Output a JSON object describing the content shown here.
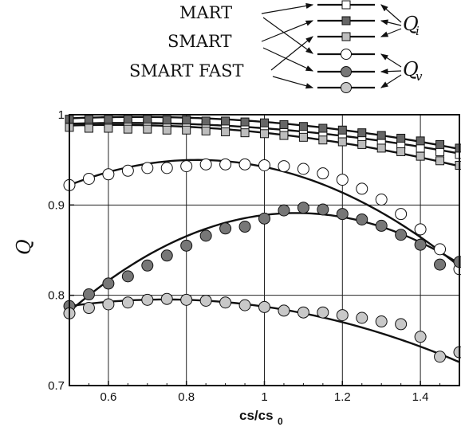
{
  "chart_data": {
    "type": "line",
    "xlabel": "cs/cs",
    "xlabel_sub": "0",
    "ylabel": "Q",
    "xlim": [
      0.5,
      1.5
    ],
    "ylim": [
      0.7,
      1.0
    ],
    "xticks": [
      0.6,
      0.8,
      1,
      1.2,
      1.4
    ],
    "yticks": [
      0.7,
      0.8,
      0.9,
      1
    ],
    "grid": true,
    "legend": {
      "methods": [
        "MART",
        "SMART",
        "SMART FAST"
      ],
      "groups": [
        {
          "symbol": "Q",
          "sub": "i"
        },
        {
          "symbol": "Q",
          "sub": "v"
        }
      ]
    },
    "series": [
      {
        "group": "Qi",
        "method": "MART",
        "marker": "square",
        "fill": "#ffffff",
        "x": [
          0.5,
          0.55,
          0.6,
          0.65,
          0.7,
          0.75,
          0.8,
          0.85,
          0.9,
          0.95,
          1.0,
          1.05,
          1.1,
          1.15,
          1.2,
          1.25,
          1.3,
          1.35,
          1.4,
          1.45,
          1.5
        ],
        "y": [
          0.99,
          0.99,
          0.99,
          0.99,
          0.99,
          0.99,
          0.989,
          0.988,
          0.988,
          0.986,
          0.985,
          0.983,
          0.98,
          0.978,
          0.976,
          0.973,
          0.97,
          0.967,
          0.963,
          0.959,
          0.956
        ],
        "curve": {
          "x": [
            0.5,
            1.0,
            1.5
          ],
          "y": [
            0.99,
            0.985,
            0.957
          ]
        }
      },
      {
        "group": "Qi",
        "method": "SMART",
        "marker": "square",
        "fill": "#666666",
        "x": [
          0.5,
          0.55,
          0.6,
          0.65,
          0.7,
          0.75,
          0.8,
          0.85,
          0.9,
          0.95,
          1.0,
          1.05,
          1.1,
          1.15,
          1.2,
          1.25,
          1.3,
          1.35,
          1.4,
          1.45,
          1.5
        ],
        "y": [
          0.995,
          0.995,
          0.995,
          0.995,
          0.995,
          0.994,
          0.994,
          0.993,
          0.993,
          0.992,
          0.991,
          0.989,
          0.987,
          0.985,
          0.983,
          0.98,
          0.977,
          0.974,
          0.971,
          0.967,
          0.963
        ],
        "curve": {
          "x": [
            0.5,
            1.0,
            1.5
          ],
          "y": [
            0.996,
            0.992,
            0.962
          ]
        }
      },
      {
        "group": "Qi",
        "method": "SMART FAST",
        "marker": "square",
        "fill": "#bdbdbd",
        "x": [
          0.5,
          0.55,
          0.6,
          0.65,
          0.7,
          0.75,
          0.8,
          0.85,
          0.9,
          0.95,
          1.0,
          1.05,
          1.1,
          1.15,
          1.2,
          1.25,
          1.3,
          1.35,
          1.4,
          1.45,
          1.5
        ],
        "y": [
          0.986,
          0.985,
          0.985,
          0.984,
          0.984,
          0.983,
          0.983,
          0.982,
          0.981,
          0.98,
          0.979,
          0.977,
          0.975,
          0.972,
          0.97,
          0.967,
          0.963,
          0.959,
          0.954,
          0.949,
          0.944
        ],
        "curve": {
          "x": [
            0.5,
            1.0,
            1.5
          ],
          "y": [
            0.988,
            0.98,
            0.943
          ]
        }
      },
      {
        "group": "Qv",
        "method": "MART",
        "marker": "circle",
        "fill": "#ffffff",
        "x": [
          0.5,
          0.55,
          0.6,
          0.65,
          0.7,
          0.75,
          0.8,
          0.85,
          0.9,
          0.95,
          1.0,
          1.05,
          1.1,
          1.15,
          1.2,
          1.25,
          1.3,
          1.35,
          1.4,
          1.45,
          1.5
        ],
        "y": [
          0.922,
          0.929,
          0.934,
          0.938,
          0.941,
          0.941,
          0.943,
          0.945,
          0.945,
          0.945,
          0.944,
          0.943,
          0.94,
          0.935,
          0.928,
          0.918,
          0.906,
          0.89,
          0.873,
          0.851,
          0.829
        ],
        "curve": {
          "x": [
            0.5,
            0.95,
            1.5
          ],
          "y": [
            0.922,
            0.946,
            0.832
          ]
        }
      },
      {
        "group": "Qv",
        "method": "SMART",
        "marker": "circle",
        "fill": "#777777",
        "x": [
          0.5,
          0.55,
          0.6,
          0.65,
          0.7,
          0.75,
          0.8,
          0.85,
          0.9,
          0.95,
          1.0,
          1.05,
          1.1,
          1.15,
          1.2,
          1.25,
          1.3,
          1.35,
          1.4,
          1.45,
          1.5
        ],
        "y": [
          0.788,
          0.801,
          0.813,
          0.821,
          0.833,
          0.844,
          0.855,
          0.866,
          0.874,
          0.876,
          0.885,
          0.894,
          0.897,
          0.895,
          0.89,
          0.884,
          0.877,
          0.867,
          0.856,
          0.834,
          0.837
        ],
        "curve": {
          "x": [
            0.5,
            1.1,
            1.5
          ],
          "y": [
            0.782,
            0.891,
            0.835
          ]
        }
      },
      {
        "group": "Qv",
        "method": "SMART FAST",
        "marker": "circle",
        "fill": "#c8c8c8",
        "x": [
          0.5,
          0.55,
          0.6,
          0.65,
          0.7,
          0.75,
          0.8,
          0.85,
          0.9,
          0.95,
          1.0,
          1.05,
          1.1,
          1.15,
          1.2,
          1.25,
          1.3,
          1.35,
          1.4,
          1.45,
          1.5
        ],
        "y": [
          0.78,
          0.786,
          0.79,
          0.792,
          0.795,
          0.796,
          0.795,
          0.794,
          0.792,
          0.789,
          0.787,
          0.783,
          0.781,
          0.781,
          0.778,
          0.775,
          0.771,
          0.768,
          0.754,
          0.732,
          0.737
        ],
        "curve": {
          "x": [
            0.5,
            0.8,
            1.5
          ],
          "y": [
            0.788,
            0.795,
            0.726
          ]
        }
      }
    ]
  }
}
